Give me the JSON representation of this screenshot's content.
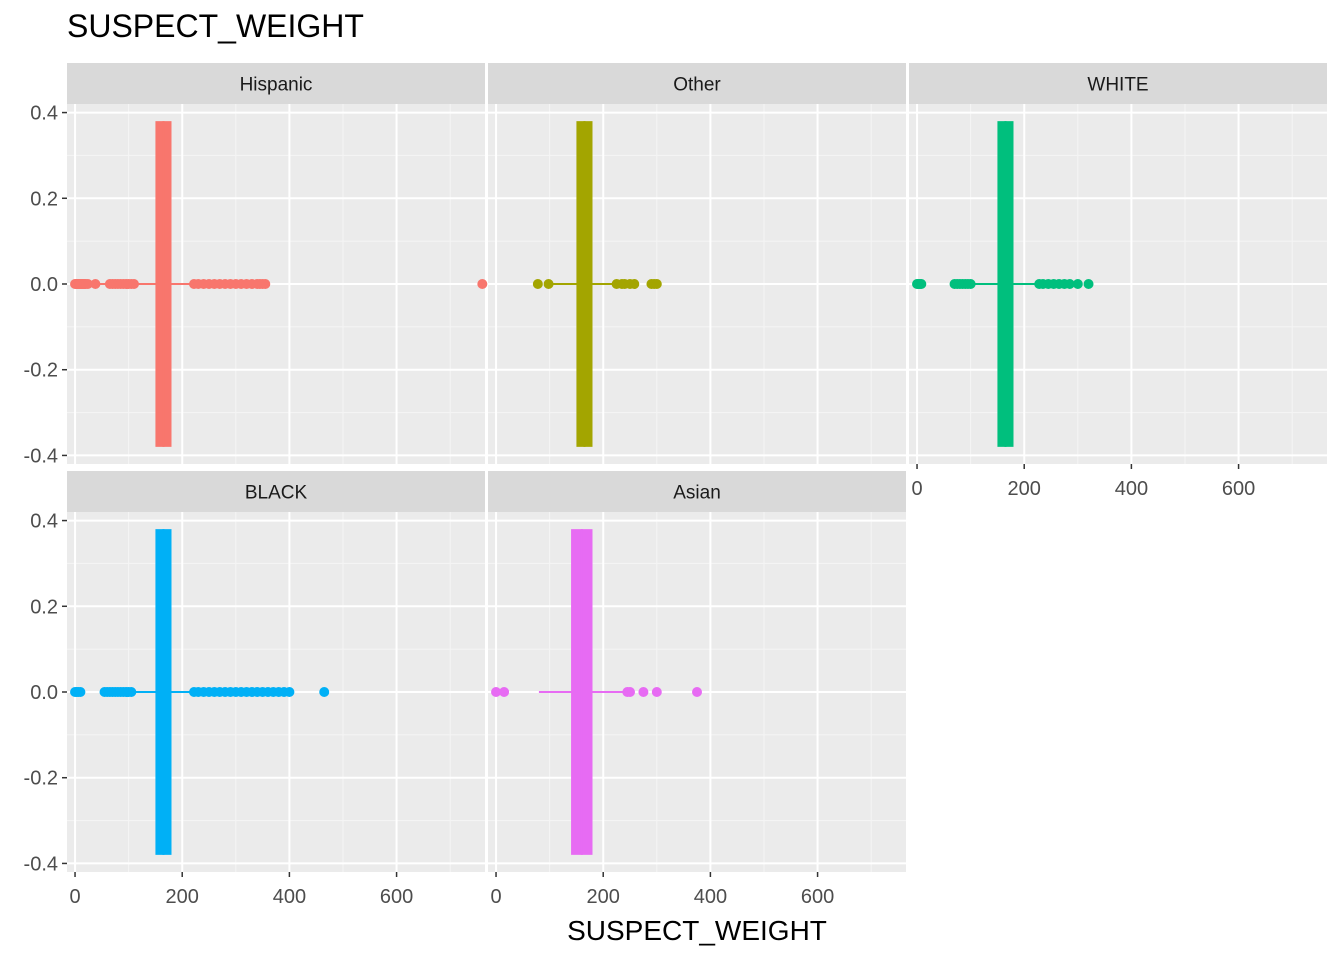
{
  "chart_data": {
    "type": "boxplot",
    "title": "SUSPECT_WEIGHT",
    "xlabel": "SUSPECT_WEIGHT",
    "ylabel": "",
    "xlim": [
      -15,
      765
    ],
    "ylim": [
      -0.42,
      0.42
    ],
    "x_ticks": [
      0,
      200,
      400,
      600
    ],
    "y_ticks": [
      0.4,
      0.2,
      0.0,
      -0.2,
      -0.4
    ],
    "y_tick_labels": [
      "0.4",
      "0.2",
      "0.0",
      "-0.2",
      "-0.4"
    ],
    "x_tick_labels": [
      "0",
      "200",
      "400",
      "600"
    ],
    "grid": true,
    "legend": "none",
    "facets": [
      {
        "label": "Hispanic",
        "color": "#F8766D",
        "box": {
          "lower": 150,
          "upper": 180,
          "median": 165
        },
        "whisker": [
          40,
          225
        ],
        "outliers": [
          0,
          2,
          4,
          6,
          8,
          10,
          12,
          14,
          16,
          18,
          20,
          24,
          38,
          65,
          70,
          75,
          80,
          85,
          90,
          95,
          100,
          105,
          110,
          222,
          230,
          240,
          250,
          260,
          270,
          280,
          290,
          300,
          310,
          320,
          330,
          340,
          345,
          350,
          355,
          760
        ]
      },
      {
        "label": "Other",
        "color": "#A3A500",
        "box": {
          "lower": 150,
          "upper": 180,
          "median": 165
        },
        "whisker": [
          100,
          230
        ],
        "outliers": [
          78,
          98,
          225,
          235,
          240,
          250,
          258,
          290,
          295,
          300
        ]
      },
      {
        "label": "WHITE",
        "color": "#00BF7D",
        "box": {
          "lower": 150,
          "upper": 180,
          "median": 165
        },
        "whisker": [
          105,
          225
        ],
        "outliers": [
          0,
          2,
          4,
          6,
          8,
          70,
          75,
          80,
          85,
          90,
          95,
          100,
          228,
          235,
          245,
          255,
          265,
          275,
          285,
          300,
          320
        ]
      },
      {
        "label": "BLACK",
        "color": "#00B0F6",
        "box": {
          "lower": 150,
          "upper": 180,
          "median": 165
        },
        "whisker": [
          110,
          222
        ],
        "outliers": [
          0,
          3,
          6,
          10,
          55,
          60,
          65,
          70,
          75,
          80,
          85,
          90,
          95,
          100,
          105,
          222,
          230,
          240,
          250,
          260,
          270,
          280,
          290,
          300,
          310,
          320,
          330,
          340,
          350,
          360,
          370,
          380,
          390,
          400,
          465
        ]
      },
      {
        "label": "Asian",
        "color": "#E76BF3",
        "box": {
          "lower": 140,
          "upper": 180,
          "median": 160
        },
        "whisker": [
          80,
          240
        ],
        "outliers": [
          0,
          15,
          245,
          250,
          275,
          300,
          375
        ]
      }
    ]
  }
}
